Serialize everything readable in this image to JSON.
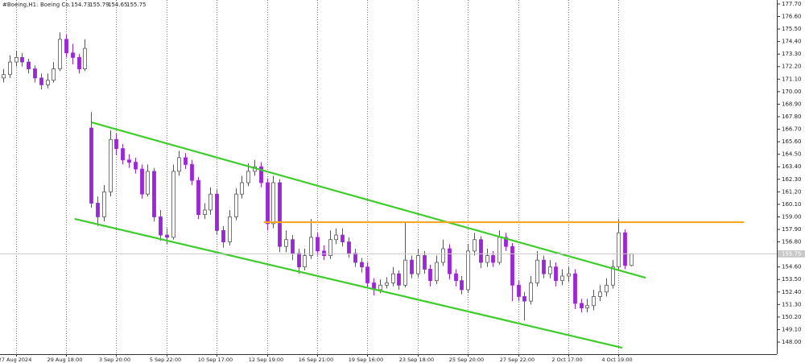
{
  "chart_data": {
    "type": "candlestick",
    "header": {
      "symbol": "#Boeing,H1:",
      "name": "Boeing Co."
    },
    "categories": [
      null,
      null,
      "27 Aug 2024",
      null,
      null,
      null,
      null,
      null,
      null,
      null,
      "29 Aug 18:00",
      null,
      null,
      null,
      null,
      null,
      null,
      null,
      "3 Sep 20:00",
      null,
      null,
      null,
      null,
      null,
      null,
      null,
      "5 Sep 22:00",
      null,
      null,
      null,
      null,
      null,
      null,
      null,
      "10 Sep 17:00",
      null,
      null,
      null,
      null,
      null,
      null,
      null,
      "12 Sep 19:00",
      null,
      null,
      null,
      null,
      null,
      null,
      null,
      "16 Sep 21:00",
      null,
      null,
      null,
      null,
      null,
      null,
      null,
      "19 Sep 16:00",
      null,
      null,
      null,
      null,
      null,
      null,
      null,
      "23 Sep 18:00",
      null,
      null,
      null,
      null,
      null,
      null,
      null,
      "25 Sep 20:00",
      null,
      null,
      null,
      null,
      null,
      null,
      null,
      "27 Sep 22:00",
      null,
      null,
      null,
      null,
      null,
      null,
      null,
      "2 Oct 17:00",
      null,
      null,
      null,
      null,
      null,
      null,
      null,
      "4 Oct 19:00",
      null,
      null
    ],
    "open": [
      171.2,
      171.5,
      172.6,
      173.0,
      172.6,
      172.0,
      171.2,
      170.6,
      171.0,
      172.0,
      174.6,
      173.4,
      173.0,
      172.0,
      166.8,
      160.2,
      159.0,
      161.2,
      165.8,
      165.0,
      164.0,
      163.8,
      163.2,
      161.0,
      163.0,
      159.0,
      157.4,
      157.2,
      163.0,
      164.2,
      163.6,
      162.2,
      159.2,
      159.6,
      161.0,
      157.8,
      156.8,
      159.0,
      161.0,
      162.0,
      163.0,
      163.4,
      162.0,
      158.4,
      162.0,
      156.4,
      157.0,
      155.8,
      154.6,
      155.6,
      157.2,
      156.0,
      155.6,
      157.0,
      157.4,
      156.8,
      155.8,
      155.0,
      154.6,
      153.2,
      152.6,
      153.0,
      153.2,
      154.0,
      153.0,
      155.2,
      154.0,
      155.6,
      154.4,
      153.4,
      155.0,
      156.2,
      154.0,
      153.4,
      152.6,
      156.0,
      157.0,
      155.0,
      155.6,
      155.0,
      157.2,
      156.4,
      153.0,
      152.0,
      151.6,
      153.2,
      155.2,
      154.0,
      154.6,
      153.4,
      153.8,
      154.0,
      151.4,
      151.0,
      151.2,
      152.0,
      152.4,
      153.0,
      154.6,
      157.6,
      154.73
    ],
    "high": [
      172.0,
      173.2,
      173.6,
      173.4,
      172.9,
      172.3,
      171.6,
      171.6,
      172.6,
      175.2,
      175.0,
      174.2,
      173.3,
      174.6,
      168.2,
      160.8,
      161.8,
      166.6,
      166.3,
      165.4,
      164.5,
      164.2,
      163.6,
      163.6,
      163.3,
      159.6,
      158.0,
      163.6,
      164.8,
      164.6,
      164.0,
      162.5,
      160.2,
      161.6,
      161.4,
      158.2,
      159.6,
      161.5,
      162.6,
      163.7,
      164.0,
      163.8,
      162.4,
      162.6,
      162.3,
      157.8,
      157.4,
      156.2,
      156.2,
      158.8,
      157.6,
      156.5,
      157.8,
      158.0,
      158.0,
      157.2,
      156.2,
      155.4,
      155.0,
      153.6,
      153.5,
      153.7,
      154.6,
      154.3,
      158.6,
      155.6,
      156.2,
      156.0,
      154.8,
      155.6,
      157.0,
      156.6,
      154.4,
      153.8,
      156.6,
      157.6,
      157.3,
      156.2,
      156.0,
      157.8,
      157.6,
      156.7,
      153.4,
      152.4,
      153.8,
      156.0,
      155.6,
      155.2,
      155.0,
      154.4,
      154.6,
      154.4,
      151.8,
      151.8,
      152.6,
      153.0,
      153.6,
      155.2,
      158.8,
      157.9,
      155.79
    ],
    "low": [
      170.8,
      171.2,
      172.2,
      172.2,
      171.6,
      170.8,
      170.2,
      170.3,
      170.8,
      171.8,
      173.0,
      172.4,
      171.6,
      171.8,
      159.8,
      158.2,
      158.6,
      160.8,
      164.4,
      163.6,
      163.3,
      162.8,
      160.6,
      160.8,
      158.6,
      156.9,
      156.6,
      157.0,
      162.6,
      163.2,
      161.8,
      158.8,
      158.8,
      159.2,
      157.4,
      156.3,
      156.5,
      158.7,
      160.6,
      161.7,
      162.6,
      161.6,
      157.8,
      158.0,
      155.9,
      155.9,
      155.2,
      154.0,
      154.3,
      155.3,
      155.6,
      155.2,
      155.3,
      156.6,
      156.4,
      155.4,
      154.6,
      154.1,
      152.8,
      152.1,
      152.3,
      152.7,
      152.9,
      152.6,
      152.8,
      153.6,
      153.7,
      154.0,
      152.9,
      153.1,
      154.7,
      153.5,
      152.9,
      152.2,
      152.3,
      155.6,
      154.5,
      154.6,
      154.6,
      154.8,
      156.0,
      151.6,
      151.6,
      149.9,
      151.3,
      152.9,
      153.6,
      153.6,
      152.9,
      153.0,
      153.3,
      150.9,
      150.6,
      150.6,
      150.8,
      151.6,
      152.0,
      152.7,
      154.3,
      154.4,
      154.65
    ],
    "close": [
      171.5,
      172.6,
      173.0,
      172.6,
      172.0,
      171.2,
      170.6,
      171.0,
      172.0,
      174.6,
      173.4,
      173.0,
      172.0,
      173.8,
      160.2,
      159.0,
      161.2,
      165.8,
      165.0,
      164.0,
      163.8,
      163.2,
      161.0,
      163.0,
      159.0,
      157.4,
      157.2,
      163.0,
      164.2,
      163.6,
      162.2,
      159.2,
      159.6,
      161.0,
      157.8,
      156.8,
      159.0,
      161.0,
      162.0,
      163.0,
      163.4,
      162.0,
      158.4,
      162.0,
      156.4,
      157.0,
      155.8,
      154.6,
      155.6,
      157.2,
      156.0,
      155.6,
      157.0,
      157.4,
      156.8,
      155.8,
      155.0,
      154.6,
      153.2,
      152.6,
      153.0,
      153.2,
      154.0,
      153.0,
      155.2,
      154.0,
      155.6,
      154.4,
      153.4,
      155.0,
      156.2,
      154.0,
      153.4,
      152.6,
      156.0,
      157.0,
      155.0,
      155.6,
      155.0,
      157.2,
      156.4,
      153.0,
      152.0,
      151.6,
      153.2,
      155.2,
      154.0,
      154.6,
      153.4,
      153.8,
      154.0,
      151.4,
      151.0,
      151.2,
      152.0,
      152.4,
      153.0,
      154.6,
      157.6,
      154.73,
      155.75
    ],
    "up_color": "#ffffff",
    "down_color": "#9b26d6",
    "xlim": [
      -0.5,
      123.2
    ],
    "ylim": [
      146.94,
      178.05
    ],
    "yticks": [
      {
        "value": 177.7,
        "label": "177.70"
      },
      {
        "value": 176.6,
        "label": "176.60"
      },
      {
        "value": 175.5,
        "label": "175.50"
      },
      {
        "value": 174.4,
        "label": "174.40"
      },
      {
        "value": 173.3,
        "label": "173.30"
      },
      {
        "value": 172.2,
        "label": "172.20"
      },
      {
        "value": 171.1,
        "label": "171.10"
      },
      {
        "value": 170,
        "label": "170.00"
      },
      {
        "value": 168.9,
        "label": "168.90"
      },
      {
        "value": 167.8,
        "label": "167.80"
      },
      {
        "value": 166.7,
        "label": "166.70"
      },
      {
        "value": 165.6,
        "label": "165.60"
      },
      {
        "value": 164.5,
        "label": "164.50"
      },
      {
        "value": 163.4,
        "label": "163.40"
      },
      {
        "value": 162.3,
        "label": "162.30"
      },
      {
        "value": 161.2,
        "label": "161.20"
      },
      {
        "value": 160.1,
        "label": "160.10"
      },
      {
        "value": 159,
        "label": "159.00"
      },
      {
        "value": 157.9,
        "label": "157.90"
      },
      {
        "value": 156.8,
        "label": "156.80"
      },
      {
        "value": 154.6,
        "label": "154.60"
      },
      {
        "value": 153.5,
        "label": "153.50"
      },
      {
        "value": 152.4,
        "label": "152.40"
      },
      {
        "value": 151.3,
        "label": "151.30"
      },
      {
        "value": 150.2,
        "label": "150.20"
      },
      {
        "value": 149.1,
        "label": "149.10"
      },
      {
        "value": 148,
        "label": "148.00"
      }
    ],
    "grid": true,
    "lines": [
      {
        "x": [
          14.1,
          102.3
        ],
        "y": [
          167.3,
          153.65
        ],
        "color": "#3dcc2a"
      },
      {
        "x": [
          11.4,
          98.6
        ],
        "y": [
          158.82,
          147.5
        ],
        "color": "#3dcc2a"
      },
      {
        "x": [
          41.5,
          118.0
        ],
        "y": [
          158.53,
          158.53
        ],
        "color": "#f5a623"
      }
    ]
  }
}
